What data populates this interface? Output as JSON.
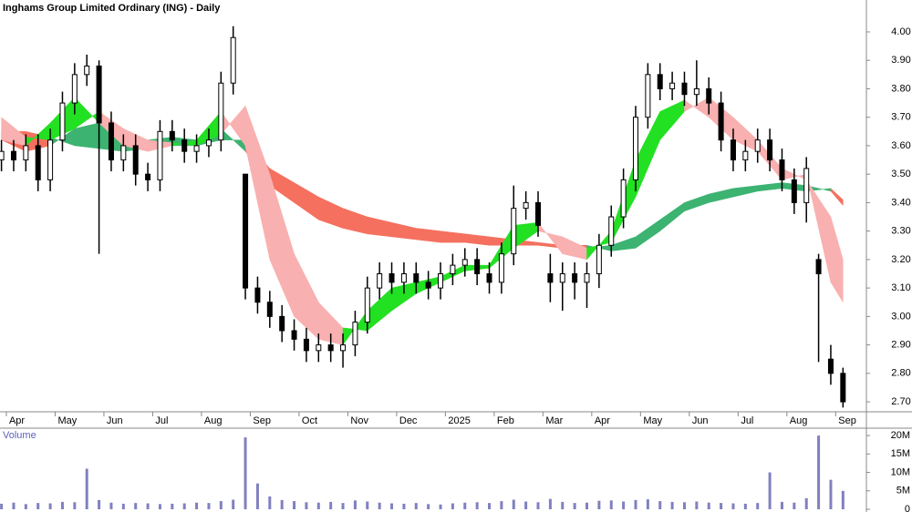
{
  "chart_data": {
    "type": "candlestick",
    "title": "Inghams Group Limited Ordinary (ING) - Daily",
    "volume_label": "Volume",
    "xlim": [
      -0.13,
      17.63
    ],
    "xticks": [
      {
        "value": 0,
        "label": "Apr"
      },
      {
        "value": 1,
        "label": "May"
      },
      {
        "value": 2,
        "label": "Jun"
      },
      {
        "value": 3,
        "label": "Jul"
      },
      {
        "value": 4,
        "label": "Aug"
      },
      {
        "value": 5,
        "label": "Sep"
      },
      {
        "value": 6,
        "label": "Oct"
      },
      {
        "value": 7,
        "label": "Nov"
      },
      {
        "value": 8,
        "label": "Dec"
      },
      {
        "value": 9,
        "label": "2025"
      },
      {
        "value": 10,
        "label": "Feb"
      },
      {
        "value": 11,
        "label": "Mar"
      },
      {
        "value": 12,
        "label": "Apr"
      },
      {
        "value": 13,
        "label": "May"
      },
      {
        "value": 14,
        "label": "Jun"
      },
      {
        "value": 15,
        "label": "Jul"
      },
      {
        "value": 16,
        "label": "Aug"
      },
      {
        "value": 17,
        "label": "Sep"
      }
    ],
    "ylim": [
      2.665,
      4.112
    ],
    "yticks": [
      {
        "value": 2.7,
        "label": "2.70"
      },
      {
        "value": 2.8,
        "label": "2.80"
      },
      {
        "value": 2.9,
        "label": "2.90"
      },
      {
        "value": 3,
        "label": "3.00"
      },
      {
        "value": 3.1,
        "label": "3.10"
      },
      {
        "value": 3.2,
        "label": "3.20"
      },
      {
        "value": 3.3,
        "label": "3.30"
      },
      {
        "value": 3.4,
        "label": "3.40"
      },
      {
        "value": 3.5,
        "label": "3.50"
      },
      {
        "value": 3.6,
        "label": "3.60"
      },
      {
        "value": 3.7,
        "label": "3.70"
      },
      {
        "value": 3.8,
        "label": "3.80"
      },
      {
        "value": 3.9,
        "label": "3.90"
      },
      {
        "value": 4,
        "label": "4.00"
      }
    ],
    "x": [
      -0.1,
      0.15,
      0.4,
      0.65,
      0.9,
      1.15,
      1.4,
      1.65,
      1.9,
      2.15,
      2.4,
      2.65,
      2.9,
      3.15,
      3.4,
      3.65,
      3.9,
      4.15,
      4.4,
      4.65,
      4.9,
      5.15,
      5.4,
      5.65,
      5.9,
      6.15,
      6.4,
      6.65,
      6.9,
      7.15,
      7.4,
      7.65,
      7.9,
      8.15,
      8.4,
      8.65,
      8.9,
      9.15,
      9.4,
      9.65,
      9.9,
      10.15,
      10.4,
      10.65,
      10.9,
      11.15,
      11.4,
      11.65,
      11.9,
      12.15,
      12.4,
      12.65,
      12.9,
      13.15,
      13.4,
      13.65,
      13.9,
      14.15,
      14.4,
      14.65,
      14.9,
      15.15,
      15.4,
      15.65,
      15.9,
      16.15,
      16.4,
      16.65,
      16.9,
      17.15
    ],
    "open": [
      3.55,
      3.58,
      3.55,
      3.6,
      3.48,
      3.62,
      3.75,
      3.85,
      3.88,
      3.68,
      3.55,
      3.6,
      3.5,
      3.48,
      3.65,
      3.62,
      3.58,
      3.6,
      3.62,
      3.82,
      3.5,
      3.1,
      3.05,
      3.0,
      2.95,
      2.92,
      2.88,
      2.9,
      2.88,
      2.9,
      2.98,
      3.1,
      3.15,
      3.12,
      3.15,
      3.12,
      3.1,
      3.15,
      3.18,
      3.2,
      3.15,
      3.12,
      3.22,
      3.38,
      3.4,
      3.15,
      3.12,
      3.15,
      3.12,
      3.15,
      3.25,
      3.35,
      3.48,
      3.7,
      3.85,
      3.8,
      3.82,
      3.78,
      3.8,
      3.75,
      3.62,
      3.55,
      3.58,
      3.62,
      3.55,
      3.48,
      3.4,
      3.2,
      2.85,
      2.8
    ],
    "high": [
      3.62,
      3.62,
      3.64,
      3.64,
      3.66,
      3.79,
      3.89,
      3.92,
      3.9,
      3.72,
      3.64,
      3.64,
      3.54,
      3.69,
      3.69,
      3.66,
      3.64,
      3.66,
      3.86,
      4.02,
      3.5,
      3.14,
      3.09,
      3.04,
      2.99,
      2.96,
      2.94,
      2.94,
      2.94,
      3.02,
      3.14,
      3.19,
      3.19,
      3.19,
      3.19,
      3.16,
      3.19,
      3.22,
      3.24,
      3.24,
      3.19,
      3.26,
      3.46,
      3.44,
      3.44,
      3.22,
      3.19,
      3.19,
      3.19,
      3.29,
      3.39,
      3.52,
      3.74,
      3.89,
      3.89,
      3.86,
      3.86,
      3.9,
      3.84,
      3.79,
      3.66,
      3.62,
      3.66,
      3.66,
      3.59,
      3.52,
      3.56,
      3.22,
      2.9,
      2.82
    ],
    "low": [
      3.51,
      3.51,
      3.51,
      3.44,
      3.44,
      3.58,
      3.71,
      3.81,
      3.22,
      3.51,
      3.51,
      3.46,
      3.44,
      3.44,
      3.58,
      3.54,
      3.54,
      3.56,
      3.58,
      3.78,
      3.06,
      3.01,
      2.96,
      2.91,
      2.88,
      2.84,
      2.84,
      2.84,
      2.82,
      2.86,
      2.94,
      3.06,
      3.08,
      3.08,
      3.08,
      3.06,
      3.06,
      3.11,
      3.14,
      3.11,
      3.08,
      3.08,
      3.18,
      3.34,
      3.28,
      3.05,
      3.02,
      3.06,
      3.03,
      3.1,
      3.21,
      3.31,
      3.44,
      3.66,
      3.76,
      3.76,
      3.74,
      3.74,
      3.71,
      3.58,
      3.51,
      3.51,
      3.54,
      3.51,
      3.44,
      3.36,
      3.33,
      2.84,
      2.76,
      2.68
    ],
    "close": [
      3.58,
      3.55,
      3.6,
      3.48,
      3.62,
      3.75,
      3.85,
      3.88,
      3.68,
      3.55,
      3.6,
      3.5,
      3.48,
      3.65,
      3.62,
      3.58,
      3.6,
      3.62,
      3.82,
      3.98,
      3.1,
      3.05,
      3.0,
      2.95,
      2.92,
      2.88,
      2.9,
      2.88,
      2.9,
      2.98,
      3.1,
      3.15,
      3.12,
      3.15,
      3.12,
      3.1,
      3.15,
      3.18,
      3.2,
      3.15,
      3.12,
      3.22,
      3.38,
      3.4,
      3.32,
      3.12,
      3.15,
      3.12,
      3.15,
      3.25,
      3.35,
      3.48,
      3.7,
      3.85,
      3.8,
      3.82,
      3.78,
      3.8,
      3.75,
      3.62,
      3.55,
      3.58,
      3.62,
      3.55,
      3.48,
      3.4,
      3.52,
      3.15,
      2.8,
      2.7
    ],
    "volume": [
      1500000,
      1800000,
      1400000,
      1700000,
      1600000,
      2000000,
      1900000,
      11000000,
      2500000,
      1800000,
      1500000,
      1700000,
      1600000,
      1400000,
      1500000,
      1600000,
      1800000,
      1700000,
      2200000,
      2600000,
      19500000,
      7000000,
      3500000,
      2500000,
      2200000,
      1900000,
      1800000,
      2000000,
      1700000,
      2400000,
      2100000,
      1800000,
      1600000,
      1500000,
      1700000,
      1400000,
      1300000,
      1600000,
      1800000,
      1900000,
      1700000,
      2200000,
      2600000,
      2100000,
      1900000,
      2800000,
      2000000,
      1700000,
      1800000,
      2300000,
      2400000,
      2100000,
      2500000,
      2700000,
      2200000,
      2000000,
      1900000,
      2100000,
      1800000,
      1700000,
      1600000,
      1500000,
      1700000,
      10000000,
      2000000,
      1800000,
      3000000,
      20000000,
      8000000,
      5000000
    ],
    "vlim": [
      0,
      22000000
    ],
    "vticks": [
      0,
      {
        "value": 5000000,
        "label": "5M"
      },
      {
        "value": 10000000,
        "label": "10M"
      },
      {
        "value": 15000000,
        "label": "15M"
      },
      {
        "value": 20000000,
        "label": "20M"
      }
    ],
    "up_color": "#ffffff",
    "down_color": "#000000",
    "volume_color": "#8080c0",
    "ribbon_x": [
      -0.1,
      0.4,
      0.9,
      1.4,
      1.9,
      2.4,
      2.9,
      3.4,
      3.9,
      4.4,
      4.9,
      5.4,
      5.9,
      6.4,
      6.9,
      7.4,
      7.9,
      8.4,
      8.9,
      9.4,
      9.9,
      10.4,
      10.9,
      11.4,
      11.9,
      12.4,
      12.9,
      13.4,
      13.9,
      14.4,
      14.9,
      15.4,
      15.9,
      16.4,
      16.9,
      17.15
    ],
    "ribbons": [
      {
        "fast": [
          3.62,
          3.58,
          3.6,
          3.66,
          3.68,
          3.64,
          3.62,
          3.63,
          3.62,
          3.66,
          3.58,
          3.46,
          3.4,
          3.34,
          3.31,
          3.29,
          3.28,
          3.27,
          3.26,
          3.26,
          3.25,
          3.25,
          3.25,
          3.24,
          3.24,
          3.25,
          3.28,
          3.34,
          3.4,
          3.43,
          3.45,
          3.46,
          3.47,
          3.46,
          3.44,
          3.39
        ],
        "slow": [
          3.65,
          3.65,
          3.63,
          3.6,
          3.59,
          3.58,
          3.59,
          3.6,
          3.6,
          3.62,
          3.62,
          3.52,
          3.47,
          3.42,
          3.38,
          3.35,
          3.33,
          3.31,
          3.3,
          3.29,
          3.28,
          3.27,
          3.26,
          3.25,
          3.25,
          3.23,
          3.24,
          3.3,
          3.37,
          3.4,
          3.42,
          3.44,
          3.45,
          3.44,
          3.45,
          3.41
        ],
        "up_color": "#3cb371",
        "down_color": "#f5705f"
      },
      {
        "fast": [
          3.62,
          3.6,
          3.68,
          3.77,
          3.68,
          3.6,
          3.58,
          3.6,
          3.62,
          3.72,
          3.6,
          3.2,
          3.0,
          2.92,
          2.9,
          3.02,
          3.1,
          3.12,
          3.14,
          3.18,
          3.18,
          3.32,
          3.33,
          3.22,
          3.2,
          3.3,
          3.55,
          3.72,
          3.76,
          3.7,
          3.62,
          3.58,
          3.48,
          3.5,
          3.12,
          3.05
        ],
        "slow": [
          3.7,
          3.63,
          3.62,
          3.66,
          3.72,
          3.66,
          3.62,
          3.61,
          3.6,
          3.64,
          3.74,
          3.5,
          3.22,
          3.05,
          2.96,
          2.95,
          3.02,
          3.08,
          3.12,
          3.16,
          3.17,
          3.24,
          3.3,
          3.28,
          3.24,
          3.26,
          3.42,
          3.62,
          3.72,
          3.77,
          3.7,
          3.62,
          3.52,
          3.48,
          3.35,
          3.2
        ],
        "up_color": "#22e022",
        "down_color": "#f9b0b0"
      }
    ]
  }
}
